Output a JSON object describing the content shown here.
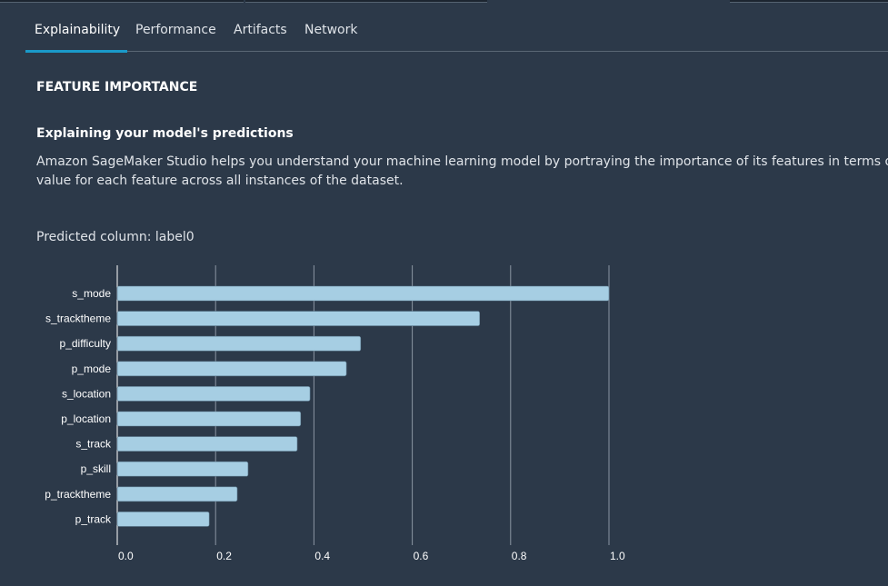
{
  "tabs": [
    {
      "label": "Explainability",
      "active": true
    },
    {
      "label": "Performance",
      "active": false
    },
    {
      "label": "Artifacts",
      "active": false
    },
    {
      "label": "Network",
      "active": false
    }
  ],
  "section_title": "FEATURE IMPORTANCE",
  "subtitle": "Explaining your model's predictions",
  "description": {
    "line1": "Amazon SageMaker Studio helps you understand your machine learning model by portraying the importance of its features in terms of SH",
    "line2": "value for each feature across all instances of the dataset."
  },
  "predicted_column": "Predicted column: label0",
  "colors": {
    "accent": "#1a9ac9",
    "bar": "#a6cee3",
    "background": "#2c3949"
  },
  "chart_data": {
    "type": "bar",
    "orientation": "horizontal",
    "categories": [
      "s_mode",
      "s_tracktheme",
      "p_difficulty",
      "p_mode",
      "s_location",
      "p_location",
      "s_track",
      "p_skill",
      "p_tracktheme",
      "p_track"
    ],
    "values": [
      1.0,
      0.737,
      0.495,
      0.466,
      0.392,
      0.373,
      0.366,
      0.266,
      0.244,
      0.187
    ],
    "xlim": [
      0,
      1.0
    ],
    "xticks": [
      "0.0",
      "0.2",
      "0.4",
      "0.6",
      "0.8",
      "1.0"
    ],
    "grid": true,
    "title": "",
    "xlabel": "",
    "ylabel": ""
  }
}
